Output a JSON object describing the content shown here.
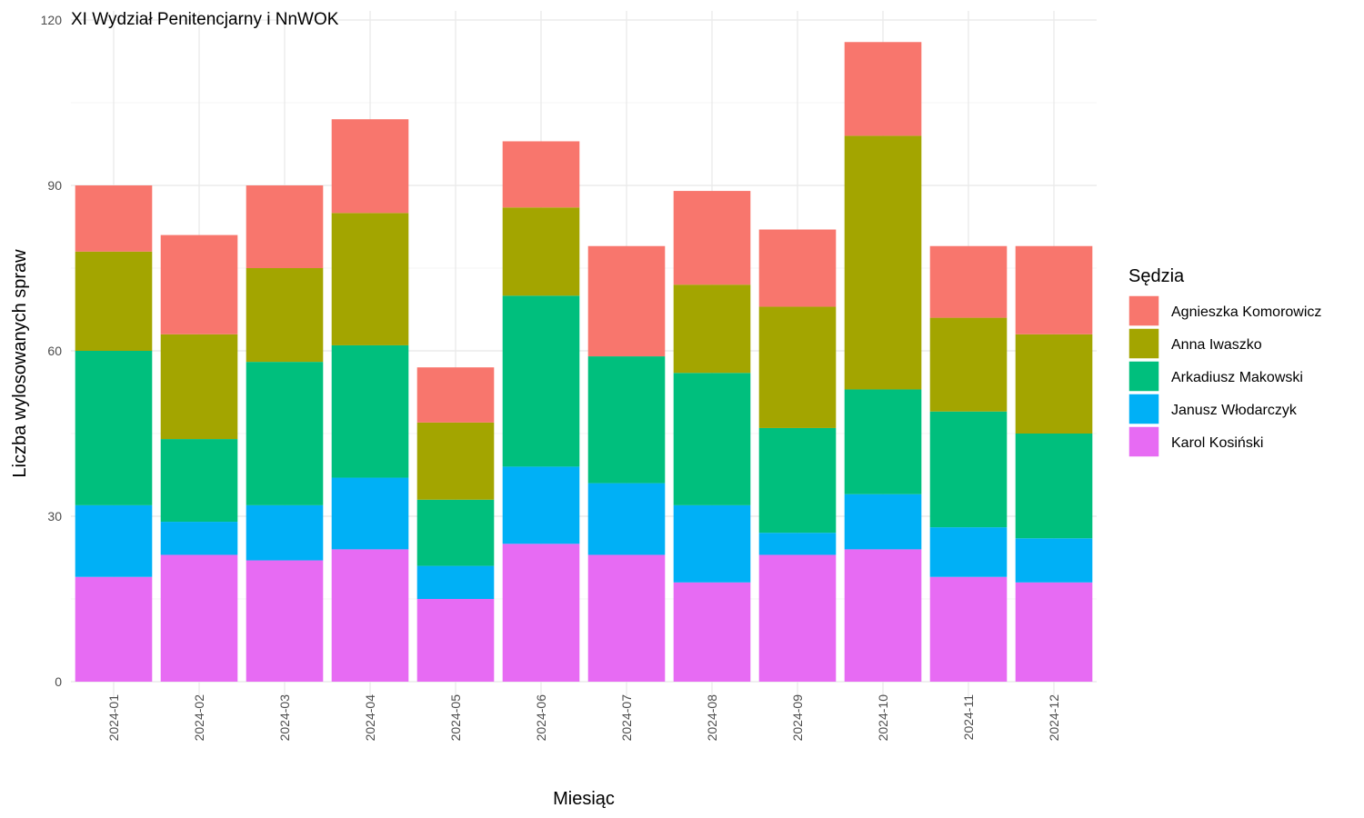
{
  "chart_data": {
    "type": "bar",
    "stacked": true,
    "title": "XI Wydział Penitencjarny i NnWOK",
    "xlabel": "Miesiąc",
    "ylabel": "Liczba wylosowanych spraw",
    "ylim": [
      0,
      120
    ],
    "yticks": [
      0,
      30,
      60,
      90,
      120
    ],
    "grid": true,
    "legend": {
      "title": "Sędzia",
      "position": "right"
    },
    "categories": [
      "2024-01",
      "2024-02",
      "2024-03",
      "2024-04",
      "2024-05",
      "2024-06",
      "2024-07",
      "2024-08",
      "2024-09",
      "2024-10",
      "2024-11",
      "2024-12"
    ],
    "series": [
      {
        "name": "Karol Kosiński",
        "color": "#E76BF3",
        "values": [
          19,
          23,
          22,
          24,
          15,
          25,
          23,
          18,
          23,
          24,
          19,
          18
        ]
      },
      {
        "name": "Janusz Włodarczyk",
        "color": "#00B0F6",
        "values": [
          13,
          6,
          10,
          13,
          6,
          14,
          13,
          14,
          4,
          10,
          9,
          8
        ]
      },
      {
        "name": "Arkadiusz Makowski",
        "color": "#00BF7D",
        "values": [
          28,
          15,
          26,
          24,
          12,
          31,
          23,
          24,
          19,
          19,
          21,
          19
        ]
      },
      {
        "name": "Anna Iwaszko",
        "color": "#A3A500",
        "values": [
          18,
          19,
          17,
          24,
          14,
          16,
          0,
          16,
          22,
          46,
          17,
          18
        ]
      },
      {
        "name": "Agnieszka Komorowicz",
        "color": "#F8766D",
        "values": [
          12,
          18,
          15,
          17,
          10,
          12,
          20,
          17,
          14,
          17,
          13,
          16
        ]
      }
    ],
    "legend_order": [
      "Agnieszka Komorowicz",
      "Anna Iwaszko",
      "Arkadiusz Makowski",
      "Janusz Włodarczyk",
      "Karol Kosiński"
    ]
  }
}
